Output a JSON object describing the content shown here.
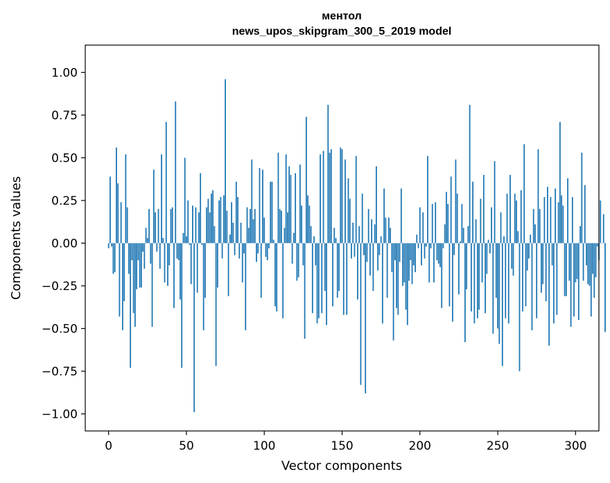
{
  "chart_data": {
    "type": "bar",
    "title_line1": "ментол",
    "title_line2": "news_upos_skipgram_300_5_2019 model",
    "xlabel": "Vector components",
    "ylabel": "Components values",
    "xlim": [
      -15,
      315
    ],
    "ylim": [
      -1.1,
      1.16
    ],
    "x_ticks": [
      0,
      50,
      100,
      150,
      200,
      250,
      300
    ],
    "x_tick_labels": [
      "0",
      "50",
      "100",
      "150",
      "200",
      "250",
      "300"
    ],
    "y_ticks": [
      1.0,
      0.75,
      0.5,
      0.25,
      0.0,
      -0.25,
      -0.5,
      -0.75,
      -1.0
    ],
    "y_tick_labels": [
      "1.00",
      "0.75",
      "0.50",
      "0.25",
      "0.00",
      "−0.25",
      "−0.50",
      "−0.75",
      "−1.00"
    ],
    "bar_color": "#1f77b4",
    "values": [
      -0.03,
      0.39,
      -0.02,
      -0.18,
      -0.17,
      0.56,
      0.35,
      -0.43,
      0.24,
      -0.51,
      -0.34,
      0.52,
      0.21,
      -0.18,
      -0.73,
      -0.1,
      -0.41,
      -0.49,
      -0.27,
      -0.1,
      -0.26,
      -0.26,
      -0.05,
      -0.15,
      0.09,
      0.03,
      0.2,
      -0.12,
      -0.49,
      0.43,
      0.18,
      -0.05,
      0.2,
      -0.15,
      0.52,
      0.03,
      -0.23,
      0.71,
      -0.25,
      -0.13,
      0.2,
      0.21,
      -0.38,
      0.83,
      -0.09,
      -0.1,
      -0.33,
      -0.73,
      0.06,
      0.5,
      0.04,
      0.25,
      -0.01,
      -0.24,
      0.22,
      -0.99,
      0.21,
      -0.29,
      0.18,
      0.41,
      -0.01,
      -0.51,
      -0.32,
      0.21,
      0.26,
      0.18,
      0.29,
      0.31,
      0.1,
      -0.72,
      -0.26,
      0.25,
      0.27,
      -0.09,
      0.28,
      0.96,
      0.19,
      -0.31,
      0.05,
      0.24,
      0.12,
      -0.07,
      0.36,
      0.27,
      -0.09,
      0.12,
      -0.23,
      -0.06,
      -0.51,
      0.21,
      0.09,
      0.2,
      0.49,
      0.14,
      0.2,
      -0.11,
      -0.06,
      0.44,
      -0.32,
      0.43,
      0.15,
      -0.08,
      -0.1,
      -0.03,
      0.36,
      0.36,
      0.02,
      -0.37,
      -0.4,
      0.53,
      0.2,
      0.19,
      -0.44,
      0.09,
      0.52,
      0.18,
      0.45,
      0.4,
      -0.12,
      0.06,
      0.41,
      -0.22,
      -0.2,
      0.46,
      0.22,
      -0.13,
      -0.56,
      0.74,
      0.28,
      0.22,
      0.1,
      -0.41,
      0.04,
      -0.13,
      -0.47,
      -0.44,
      0.52,
      -0.41,
      0.54,
      -0.28,
      -0.48,
      0.81,
      0.53,
      0.55,
      -0.37,
      0.09,
      0.03,
      -0.32,
      -0.28,
      0.56,
      0.55,
      -0.42,
      0.49,
      -0.42,
      0.38,
      0.26,
      -0.09,
      0.12,
      -0.08,
      0.51,
      -0.33,
      0.1,
      -0.83,
      0.29,
      -0.07,
      -0.88,
      -0.11,
      0.2,
      -0.19,
      0.14,
      -0.28,
      0.11,
      0.45,
      -0.16,
      -0.07,
      0.04,
      -0.47,
      0.32,
      0.15,
      -0.32,
      0.15,
      0.09,
      -0.17,
      -0.57,
      -0.1,
      -0.38,
      -0.42,
      -0.11,
      0.32,
      -0.25,
      -0.23,
      -0.39,
      -0.48,
      -0.22,
      -0.1,
      -0.24,
      -0.13,
      -0.17,
      0.05,
      -0.03,
      0.21,
      -0.13,
      0.18,
      -0.09,
      -0.02,
      0.51,
      -0.23,
      -0.03,
      0.23,
      -0.23,
      0.24,
      -0.1,
      -0.12,
      -0.14,
      -0.38,
      -0.03,
      0.11,
      0.3,
      0.23,
      -0.37,
      0.39,
      -0.46,
      -0.07,
      0.49,
      0.29,
      -0.3,
      0.01,
      0.23,
      0.09,
      -0.58,
      -0.27,
      0.1,
      0.81,
      -0.4,
      0.36,
      -0.47,
      0.14,
      -0.44,
      -0.39,
      0.26,
      -0.23,
      0.4,
      -0.41,
      -0.18,
      0.02,
      -0.06,
      0.21,
      -0.53,
      0.48,
      -0.32,
      -0.5,
      -0.59,
      0.18,
      -0.72,
      0.04,
      -0.44,
      0.29,
      -0.47,
      0.4,
      -0.15,
      -0.19,
      0.29,
      0.25,
      0.07,
      -0.75,
      0.31,
      -0.4,
      0.58,
      -0.37,
      -0.16,
      -0.09,
      0.05,
      -0.51,
      0.2,
      0.11,
      -0.44,
      0.55,
      0.2,
      -0.29,
      -0.24,
      0.27,
      -0.34,
      0.33,
      -0.6,
      0.27,
      -0.13,
      -0.47,
      0.32,
      -0.42,
      0.24,
      0.71,
      0.28,
      0.22,
      -0.31,
      -0.31,
      0.38,
      -0.22,
      -0.49,
      0.27,
      -0.43,
      -0.23,
      -0.21,
      -0.45,
      0.1,
      0.53,
      -0.22,
      0.34,
      -0.13,
      -0.24,
      -0.25,
      -0.43,
      -0.18,
      -0.32,
      -0.2,
      -0.02,
      -0.1,
      0.25,
      0.0,
      0.17,
      -0.52
    ]
  }
}
